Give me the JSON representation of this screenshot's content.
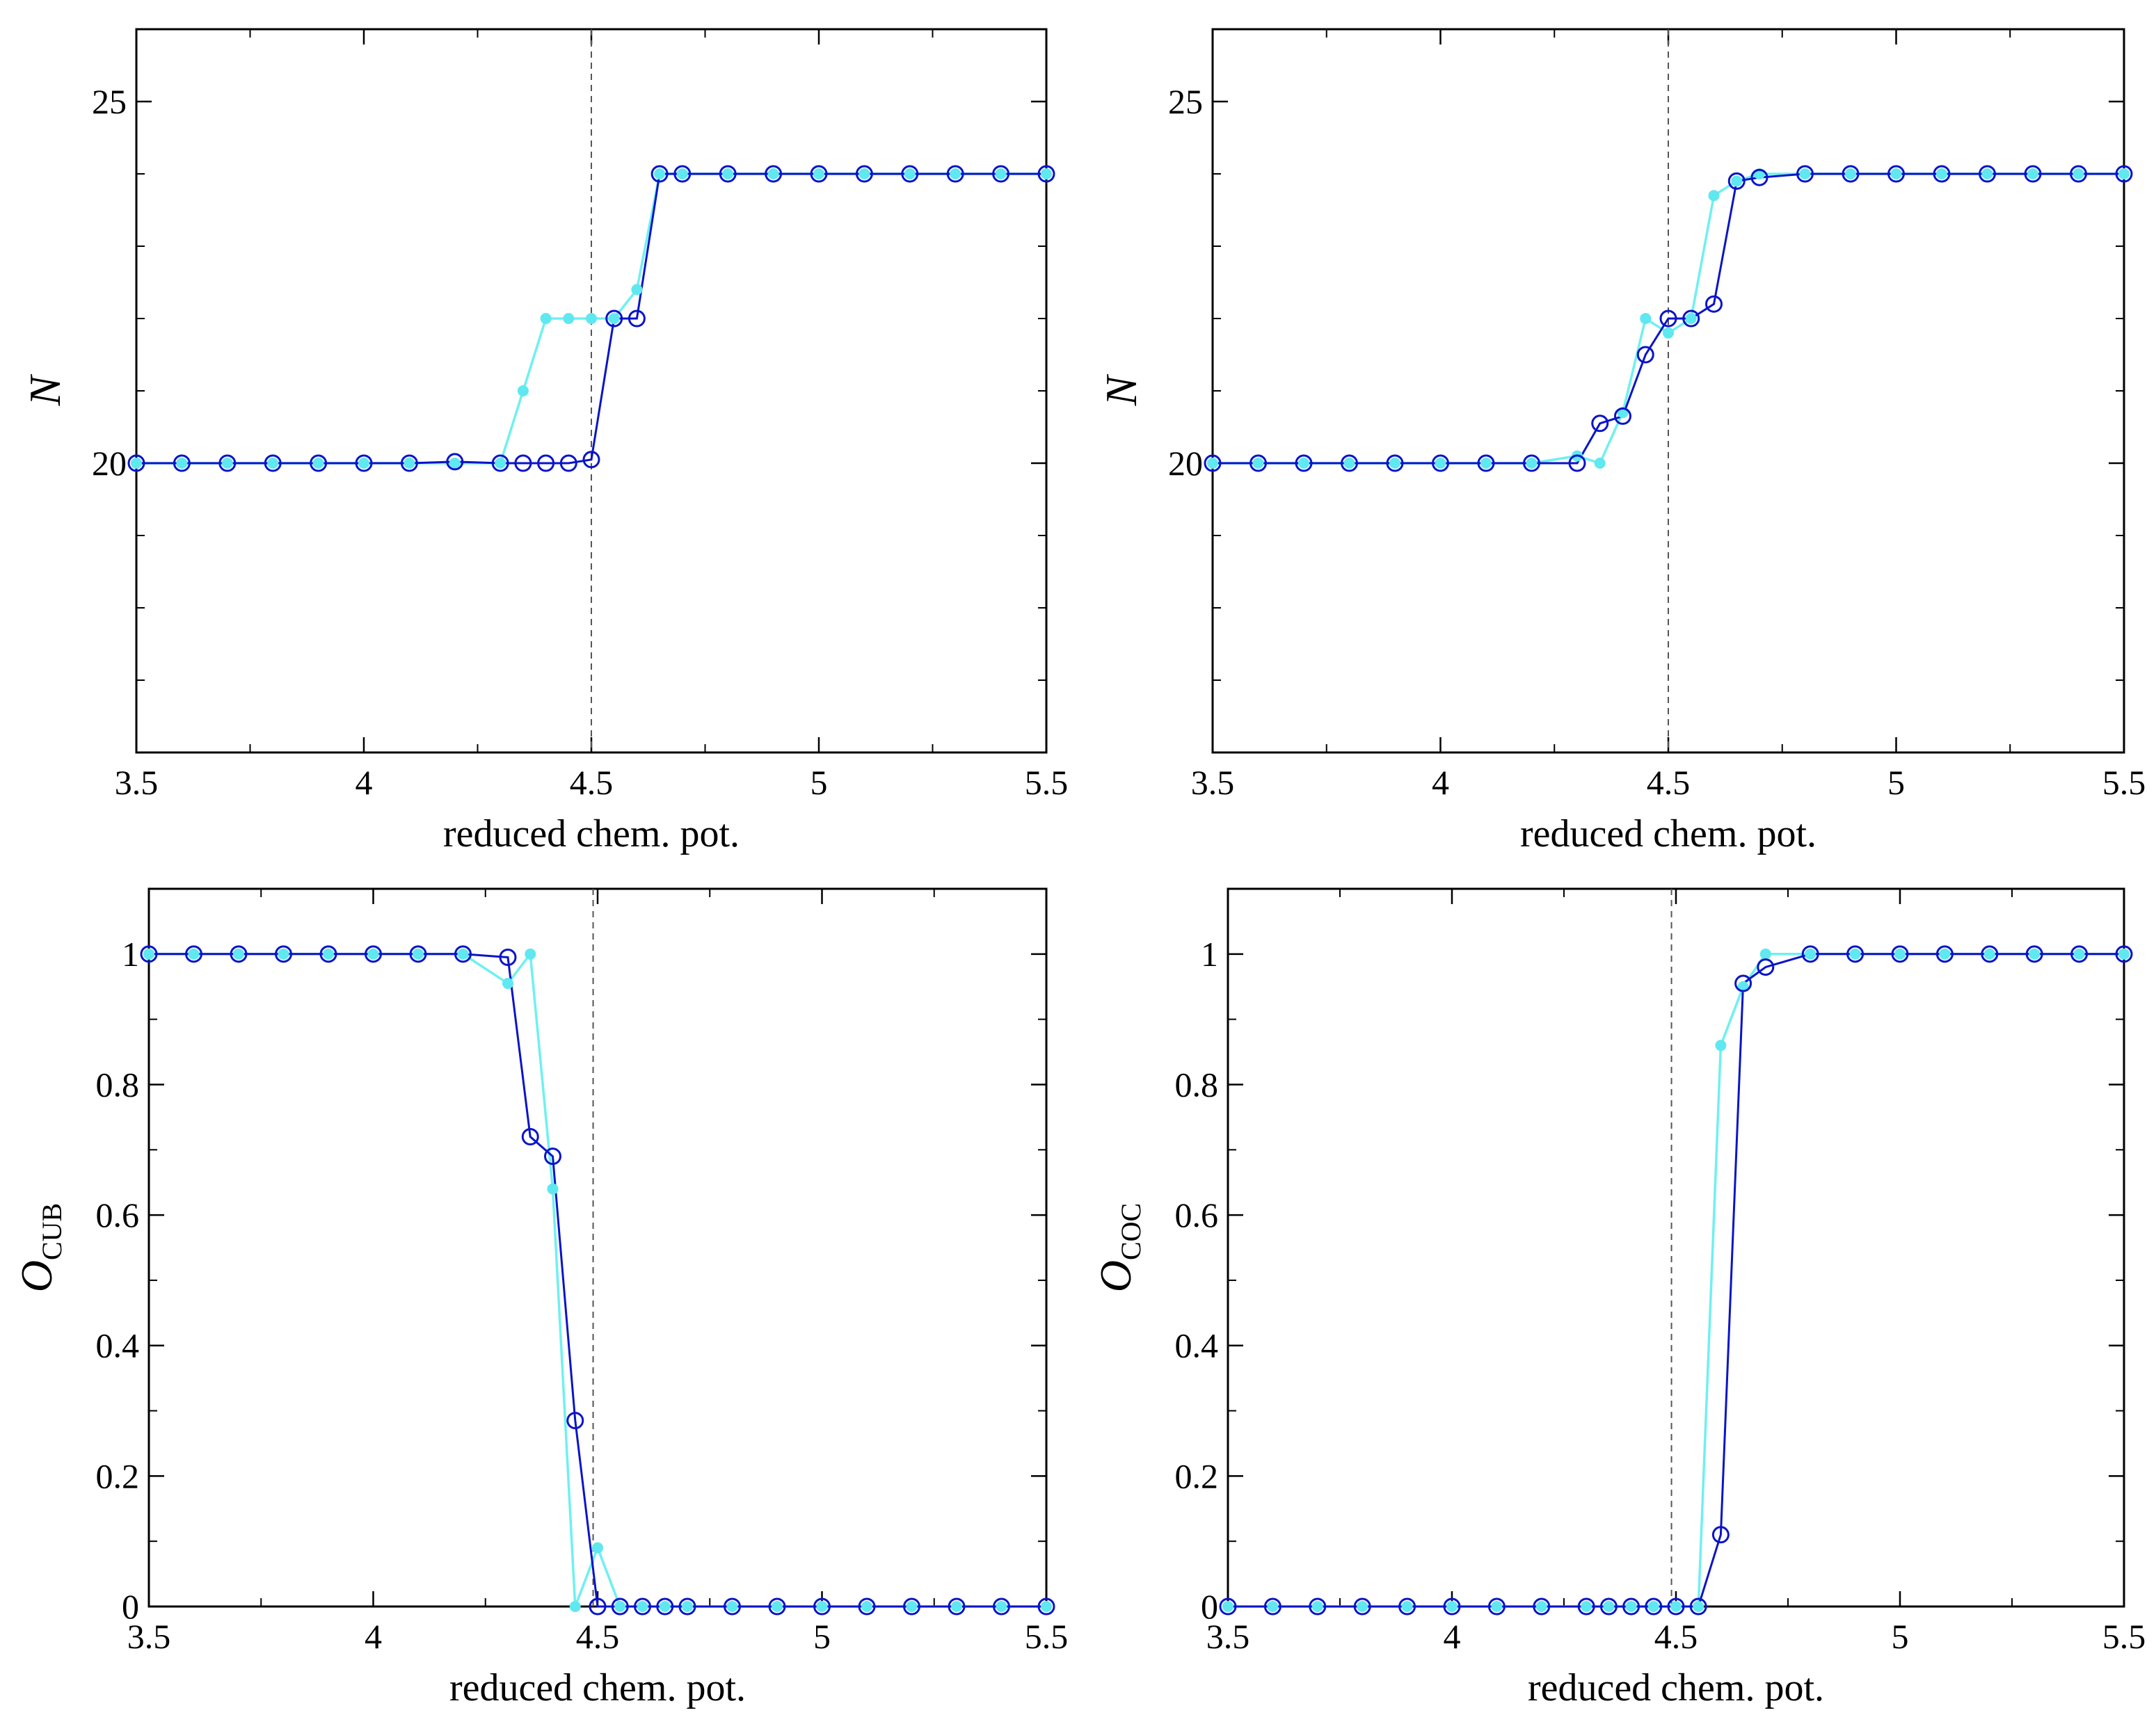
{
  "figure": {
    "panel_count": 4,
    "colors": {
      "series_dark": "#0a14c8",
      "series_light": "#6ff0f0",
      "marker_fill": "#5fe8f0",
      "vline": "#555555",
      "frame": "#000000"
    }
  },
  "chart_data": [
    {
      "id": "top-left",
      "type": "line",
      "title": "",
      "xlabel": "reduced chem. pot.",
      "ylabel": "N",
      "ylabel_sub": "",
      "xlim": [
        3.5,
        5.5
      ],
      "ylim": [
        16,
        26
      ],
      "xticks": [
        3.5,
        4,
        4.5,
        5,
        5.5
      ],
      "xtick_labels": [
        "3.5",
        "4",
        "4.5",
        "5",
        "5.5"
      ],
      "yticks": [
        20,
        25
      ],
      "ytick_labels": [
        "20",
        "25"
      ],
      "y_minor_step": 1,
      "vline": 4.5,
      "grid": false,
      "series": [
        {
          "name": "light",
          "marker": "filled-circle",
          "x": [
            3.5,
            3.6,
            3.7,
            3.8,
            3.9,
            4.0,
            4.1,
            4.2,
            4.3,
            4.35,
            4.4,
            4.45,
            4.5,
            4.55,
            4.6,
            4.65,
            4.7,
            4.8,
            4.9,
            5.0,
            5.1,
            5.2,
            5.3,
            5.4,
            5.5
          ],
          "y": [
            20,
            20,
            20,
            20,
            20,
            20,
            20,
            20,
            20,
            21,
            22,
            22,
            22,
            22,
            22.4,
            24,
            24,
            24,
            24,
            24,
            24,
            24,
            24,
            24,
            24
          ]
        },
        {
          "name": "dark",
          "marker": "open-circle",
          "x": [
            3.5,
            3.6,
            3.7,
            3.8,
            3.9,
            4.0,
            4.1,
            4.2,
            4.3,
            4.35,
            4.4,
            4.45,
            4.5,
            4.55,
            4.6,
            4.65,
            4.7,
            4.8,
            4.9,
            5.0,
            5.1,
            5.2,
            5.3,
            5.4,
            5.5
          ],
          "y": [
            20,
            20,
            20,
            20,
            20,
            20,
            20,
            20.02,
            20,
            20,
            20,
            20,
            20.05,
            22,
            22,
            24,
            24,
            24,
            24,
            24,
            24,
            24,
            24,
            24,
            24
          ]
        }
      ]
    },
    {
      "id": "top-right",
      "type": "line",
      "title": "",
      "xlabel": "reduced chem. pot.",
      "ylabel": "N",
      "ylabel_sub": "",
      "xlim": [
        3.5,
        5.5
      ],
      "ylim": [
        16,
        26
      ],
      "xticks": [
        3.5,
        4,
        4.5,
        5,
        5.5
      ],
      "xtick_labels": [
        "3.5",
        "4",
        "4.5",
        "5",
        "5.5"
      ],
      "yticks": [
        20,
        25
      ],
      "ytick_labels": [
        "20",
        "25"
      ],
      "y_minor_step": 1,
      "vline": 4.5,
      "grid": false,
      "series": [
        {
          "name": "light",
          "marker": "filled-circle",
          "x": [
            3.5,
            3.6,
            3.7,
            3.8,
            3.9,
            4.0,
            4.1,
            4.2,
            4.3,
            4.35,
            4.4,
            4.45,
            4.5,
            4.55,
            4.6,
            4.65,
            4.7,
            4.8,
            4.9,
            5.0,
            5.1,
            5.2,
            5.3,
            5.4,
            5.5
          ],
          "y": [
            20,
            20,
            20,
            20,
            20,
            20,
            20,
            20,
            20.1,
            20,
            20.7,
            22,
            21.8,
            22,
            23.7,
            23.9,
            24,
            24,
            24,
            24,
            24,
            24,
            24,
            24,
            24
          ]
        },
        {
          "name": "dark",
          "marker": "open-circle",
          "x": [
            3.5,
            3.6,
            3.7,
            3.8,
            3.9,
            4.0,
            4.1,
            4.2,
            4.3,
            4.35,
            4.4,
            4.45,
            4.5,
            4.55,
            4.6,
            4.65,
            4.7,
            4.8,
            4.9,
            5.0,
            5.1,
            5.2,
            5.3,
            5.4,
            5.5
          ],
          "y": [
            20,
            20,
            20,
            20,
            20,
            20,
            20,
            20,
            20,
            20.55,
            20.65,
            21.5,
            22,
            22,
            22.2,
            23.9,
            23.95,
            24,
            24,
            24,
            24,
            24,
            24,
            24,
            24
          ]
        }
      ]
    },
    {
      "id": "bottom-left",
      "type": "line",
      "title": "",
      "xlabel": "reduced chem. pot.",
      "ylabel": "O",
      "ylabel_sub": "CUB",
      "xlim": [
        3.5,
        5.5
      ],
      "ylim": [
        0,
        1.1
      ],
      "xticks": [
        3.5,
        4,
        4.5,
        5,
        5.5
      ],
      "xtick_labels": [
        "3.5",
        "4",
        "4.5",
        "5",
        "5.5"
      ],
      "yticks": [
        0,
        0.2,
        0.4,
        0.6,
        0.8,
        1
      ],
      "ytick_labels": [
        "0",
        "0.2",
        "0.4",
        "0.6",
        "0.8",
        "1"
      ],
      "y_minor_step": 0.1,
      "vline": 4.49,
      "grid": false,
      "series": [
        {
          "name": "light",
          "marker": "filled-circle",
          "x": [
            3.5,
            3.6,
            3.7,
            3.8,
            3.9,
            4.0,
            4.1,
            4.2,
            4.3,
            4.35,
            4.4,
            4.45,
            4.5,
            4.55,
            4.6,
            4.65,
            4.7,
            4.8,
            4.9,
            5.0,
            5.1,
            5.2,
            5.3,
            5.4,
            5.5
          ],
          "y": [
            1,
            1,
            1,
            1,
            1,
            1,
            1,
            1,
            0.955,
            1,
            0.64,
            0,
            0.09,
            0,
            0,
            0,
            0,
            0,
            0,
            0,
            0,
            0,
            0,
            0,
            0
          ]
        },
        {
          "name": "dark",
          "marker": "open-circle",
          "x": [
            3.5,
            3.6,
            3.7,
            3.8,
            3.9,
            4.0,
            4.1,
            4.2,
            4.3,
            4.35,
            4.4,
            4.45,
            4.5,
            4.55,
            4.6,
            4.65,
            4.7,
            4.8,
            4.9,
            5.0,
            5.1,
            5.2,
            5.3,
            5.4,
            5.5
          ],
          "y": [
            1,
            1,
            1,
            1,
            1,
            1,
            1,
            1,
            0.995,
            0.72,
            0.69,
            0.285,
            0,
            0,
            0,
            0,
            0,
            0,
            0,
            0,
            0,
            0,
            0,
            0,
            0
          ]
        }
      ]
    },
    {
      "id": "bottom-right",
      "type": "line",
      "title": "",
      "xlabel": "reduced chem. pot.",
      "ylabel": "O",
      "ylabel_sub": "COC",
      "xlim": [
        3.5,
        5.5
      ],
      "ylim": [
        0,
        1.1
      ],
      "xticks": [
        3.5,
        4,
        4.5,
        5,
        5.5
      ],
      "xtick_labels": [
        "3.5",
        "4",
        "4.5",
        "5",
        "5.5"
      ],
      "yticks": [
        0,
        0.2,
        0.4,
        0.6,
        0.8,
        1
      ],
      "ytick_labels": [
        "0",
        "0.2",
        "0.4",
        "0.6",
        "0.8",
        "1"
      ],
      "y_minor_step": 0.1,
      "vline": 4.49,
      "grid": false,
      "series": [
        {
          "name": "light",
          "marker": "filled-circle",
          "x": [
            3.5,
            3.6,
            3.7,
            3.8,
            3.9,
            4.0,
            4.1,
            4.2,
            4.3,
            4.35,
            4.4,
            4.45,
            4.5,
            4.55,
            4.6,
            4.65,
            4.7,
            4.8,
            4.9,
            5.0,
            5.1,
            5.2,
            5.3,
            5.4,
            5.5
          ],
          "y": [
            0,
            0,
            0,
            0,
            0,
            0,
            0,
            0,
            0,
            0,
            0,
            0,
            0,
            0,
            0.86,
            0.95,
            1,
            1,
            1,
            1,
            1,
            1,
            1,
            1,
            1
          ]
        },
        {
          "name": "dark",
          "marker": "open-circle",
          "x": [
            3.5,
            3.6,
            3.7,
            3.8,
            3.9,
            4.0,
            4.1,
            4.2,
            4.3,
            4.35,
            4.4,
            4.45,
            4.5,
            4.55,
            4.6,
            4.65,
            4.7,
            4.8,
            4.9,
            5.0,
            5.1,
            5.2,
            5.3,
            5.4,
            5.5
          ],
          "y": [
            0,
            0,
            0,
            0,
            0,
            0,
            0,
            0,
            0,
            0,
            0,
            0,
            0,
            0,
            0.11,
            0.955,
            0.98,
            1,
            1,
            1,
            1,
            1,
            1,
            1,
            1
          ]
        }
      ]
    }
  ]
}
